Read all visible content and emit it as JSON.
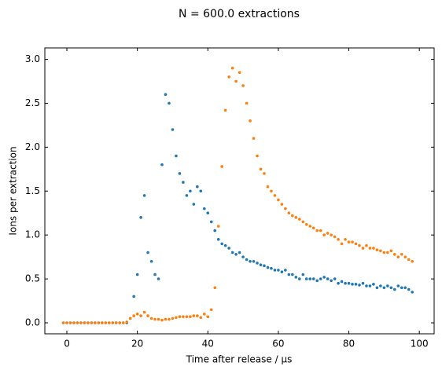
{
  "chart_data": {
    "type": "scatter",
    "title": "N = 600.0 extractions",
    "xlabel": "Time after release / µs",
    "ylabel": "Ions per extraction",
    "x": [
      -1,
      0,
      1,
      2,
      3,
      4,
      5,
      6,
      7,
      8,
      9,
      10,
      11,
      12,
      13,
      14,
      15,
      16,
      17,
      18,
      19,
      20,
      21,
      22,
      23,
      24,
      25,
      26,
      27,
      28,
      29,
      30,
      31,
      32,
      33,
      34,
      35,
      36,
      37,
      38,
      39,
      40,
      41,
      42,
      43,
      44,
      45,
      46,
      47,
      48,
      49,
      50,
      51,
      52,
      53,
      54,
      55,
      56,
      57,
      58,
      59,
      60,
      61,
      62,
      63,
      64,
      65,
      66,
      67,
      68,
      69,
      70,
      71,
      72,
      73,
      74,
      75,
      76,
      77,
      78,
      79,
      80,
      81,
      82,
      83,
      84,
      85,
      86,
      87,
      88,
      89,
      90,
      91,
      92,
      93,
      94,
      95,
      96,
      97,
      98
    ],
    "series": [
      {
        "color": "#1f77b4",
        "values": [
          0,
          0,
          0,
          0,
          0,
          0,
          0,
          0,
          0,
          0,
          0,
          0,
          0,
          0,
          0,
          0,
          0,
          0,
          0,
          0.05,
          0.3,
          0.55,
          1.2,
          1.45,
          0.8,
          0.7,
          0.55,
          0.5,
          1.8,
          2.6,
          2.5,
          2.2,
          1.9,
          1.7,
          1.6,
          1.45,
          1.5,
          1.35,
          1.55,
          1.5,
          1.3,
          1.25,
          1.15,
          1.05,
          0.95,
          0.9,
          0.88,
          0.85,
          0.8,
          0.78,
          0.8,
          0.75,
          0.72,
          0.7,
          0.7,
          0.68,
          0.66,
          0.65,
          0.63,
          0.62,
          0.6,
          0.6,
          0.58,
          0.6,
          0.55,
          0.55,
          0.52,
          0.5,
          0.55,
          0.5,
          0.5,
          0.5,
          0.48,
          0.5,
          0.52,
          0.5,
          0.48,
          0.5,
          0.45,
          0.47,
          0.45,
          0.45,
          0.44,
          0.44,
          0.43,
          0.45,
          0.42,
          0.42,
          0.44,
          0.4,
          0.42,
          0.4,
          0.42,
          0.4,
          0.38,
          0.42,
          0.4,
          0.4,
          0.38,
          0.35
        ]
      },
      {
        "color": "#ff7f0e",
        "values": [
          0,
          0,
          0,
          0,
          0,
          0,
          0,
          0,
          0,
          0,
          0,
          0,
          0,
          0,
          0,
          0,
          0,
          0,
          0.01,
          0.05,
          0.08,
          0.1,
          0.08,
          0.12,
          0.08,
          0.05,
          0.04,
          0.04,
          0.03,
          0.04,
          0.04,
          0.05,
          0.06,
          0.07,
          0.07,
          0.07,
          0.07,
          0.08,
          0.08,
          0.06,
          0.1,
          0.07,
          0.15,
          0.4,
          1.1,
          1.78,
          2.42,
          2.8,
          2.9,
          2.75,
          2.85,
          2.7,
          2.5,
          2.3,
          2.1,
          1.9,
          1.75,
          1.7,
          1.55,
          1.5,
          1.45,
          1.4,
          1.35,
          1.3,
          1.25,
          1.22,
          1.2,
          1.18,
          1.15,
          1.12,
          1.1,
          1.08,
          1.05,
          1.05,
          1.0,
          1.02,
          1.0,
          0.98,
          0.95,
          0.9,
          0.95,
          0.92,
          0.92,
          0.9,
          0.88,
          0.85,
          0.88,
          0.85,
          0.85,
          0.83,
          0.82,
          0.8,
          0.8,
          0.82,
          0.78,
          0.75,
          0.78,
          0.75,
          0.72,
          0.7
        ]
      }
    ],
    "xlim": [
      -6.25,
      104.2
    ],
    "xticks": [
      0,
      20,
      40,
      60,
      80,
      100
    ],
    "ylim": [
      -0.125,
      3.13
    ],
    "yticks": [
      {
        "value": 0,
        "label": "0.0"
      },
      0.5,
      {
        "value": 1,
        "label": "1.0"
      },
      1.5,
      {
        "value": 2,
        "label": "2.0"
      },
      2.5,
      {
        "value": 3,
        "label": "3.0"
      }
    ]
  }
}
